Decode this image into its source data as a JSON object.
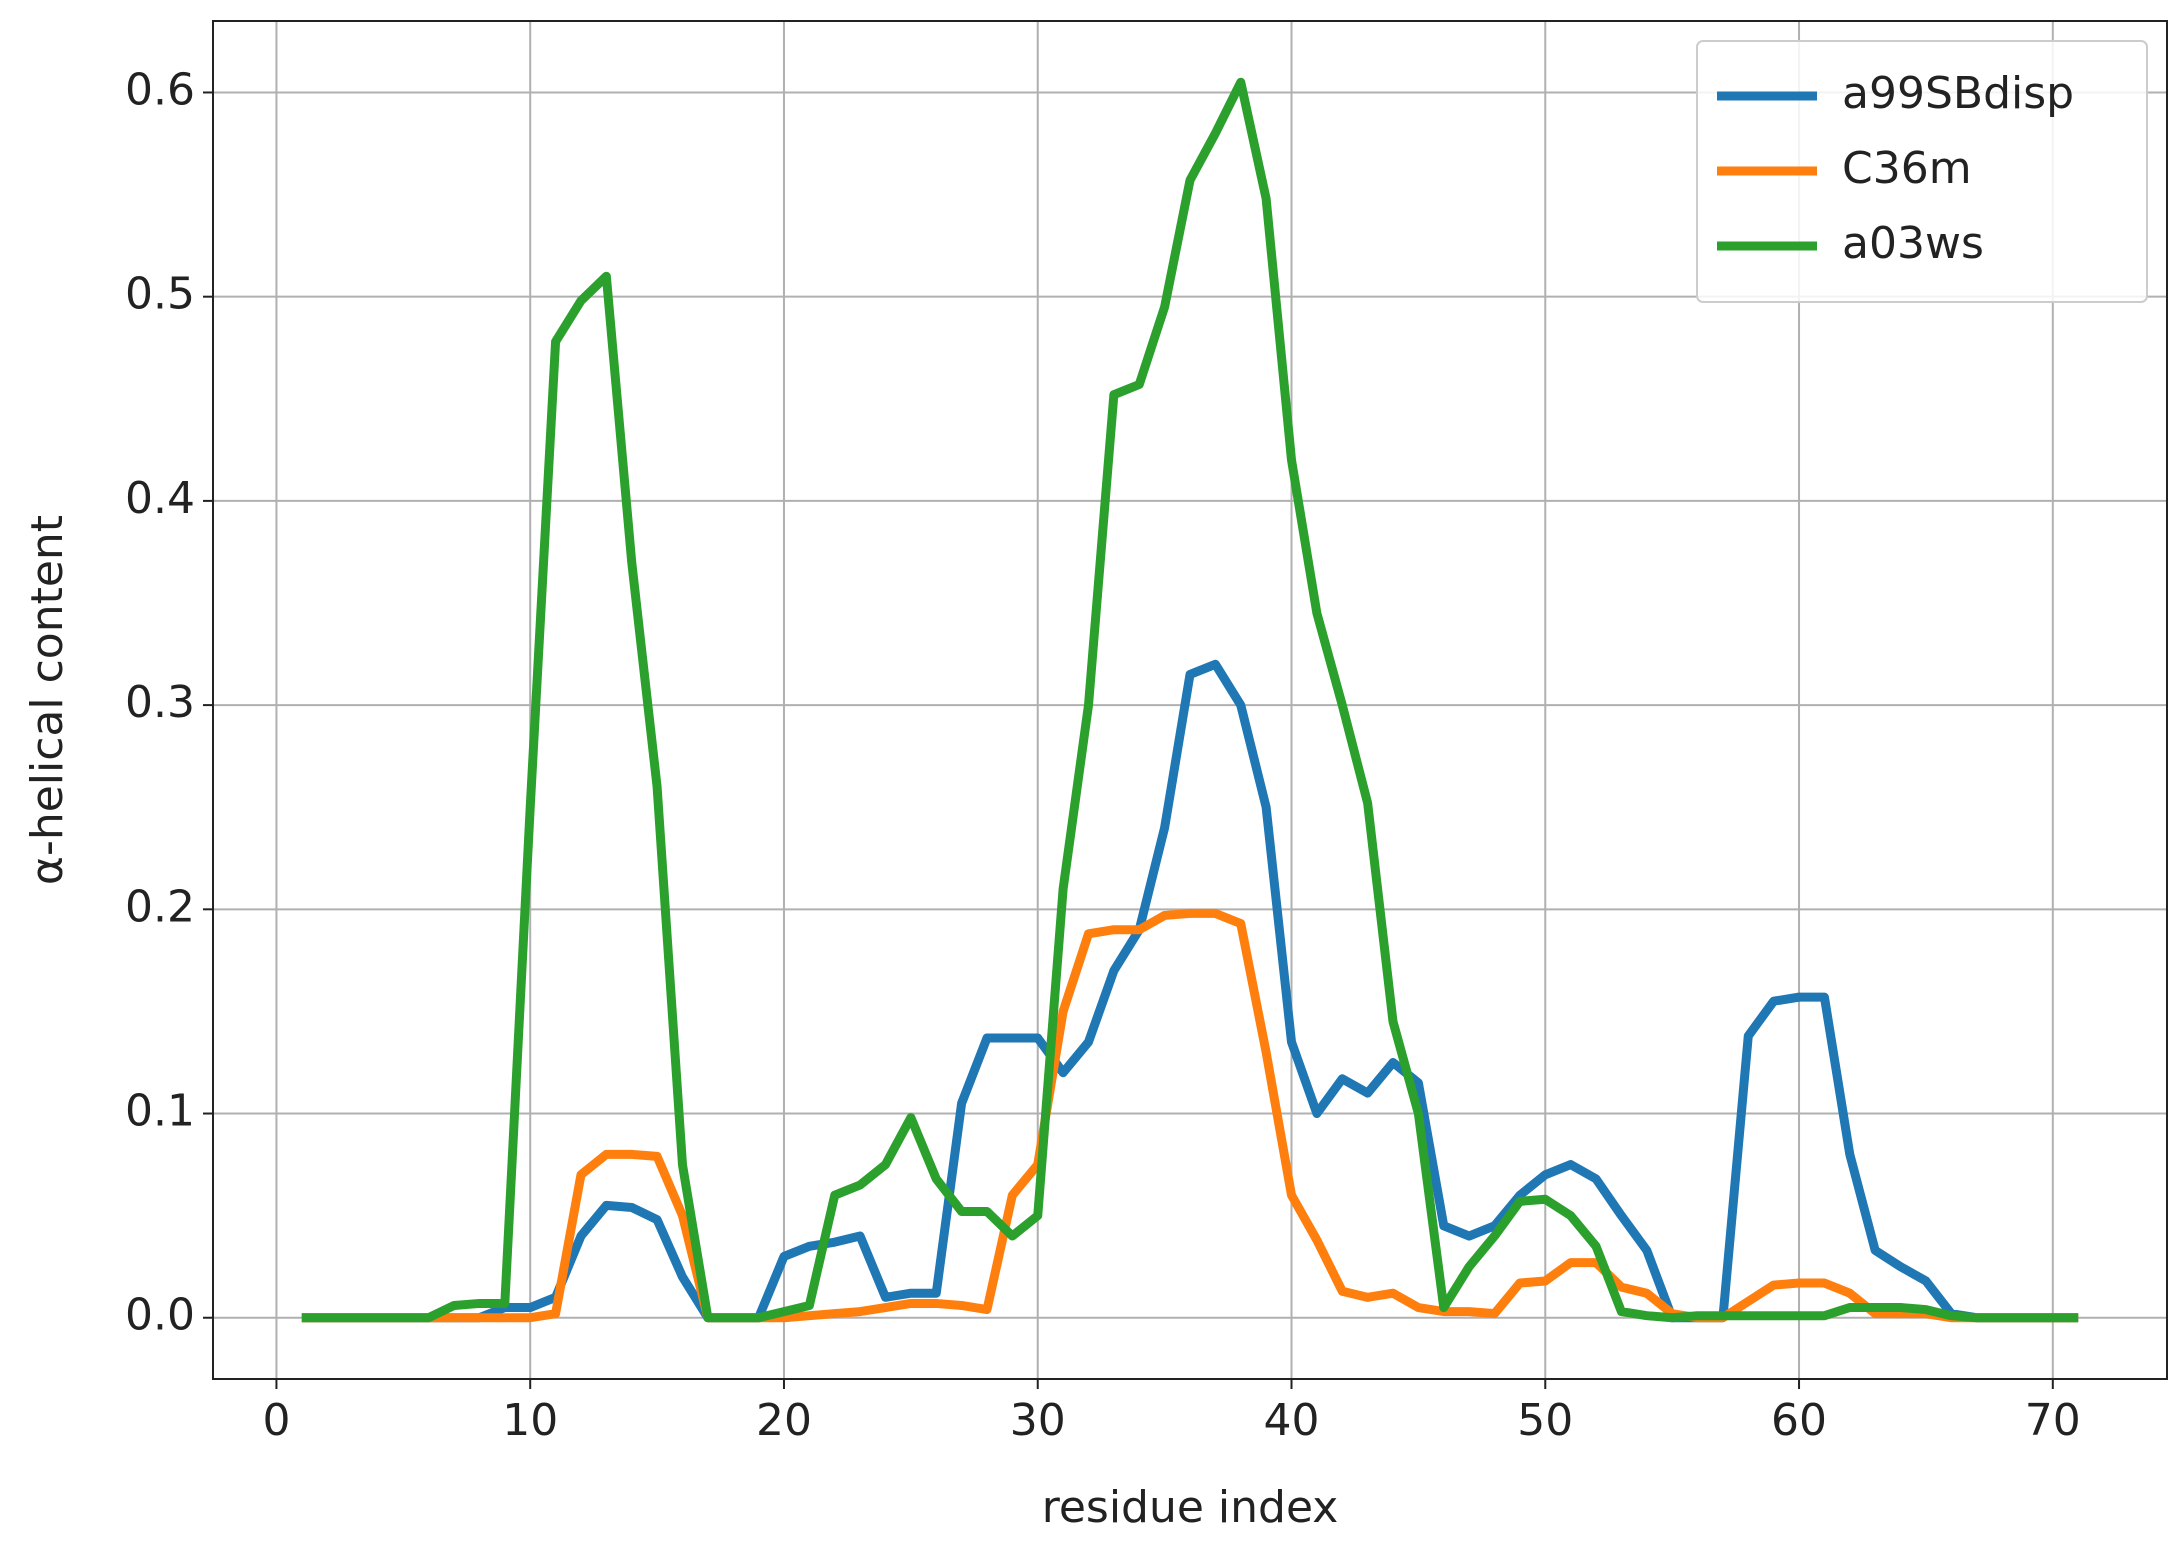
{
  "chart_data": {
    "type": "line",
    "xlabel": "residue index",
    "ylabel": "α-helical content",
    "x": [
      1,
      2,
      3,
      4,
      5,
      6,
      7,
      8,
      9,
      10,
      11,
      12,
      13,
      14,
      15,
      16,
      17,
      18,
      19,
      20,
      21,
      22,
      23,
      24,
      25,
      26,
      27,
      28,
      29,
      30,
      31,
      32,
      33,
      34,
      35,
      36,
      37,
      38,
      39,
      40,
      41,
      42,
      43,
      44,
      45,
      46,
      47,
      48,
      49,
      50,
      51,
      52,
      53,
      54,
      55,
      56,
      57,
      58,
      59,
      60,
      61,
      62,
      63,
      64,
      65,
      66,
      67,
      68,
      69,
      70,
      71
    ],
    "series": [
      {
        "name": "a99SBdisp",
        "color": "#1f77b4",
        "values": [
          0,
          0,
          0,
          0,
          0,
          0,
          0,
          0,
          0.005,
          0.005,
          0.01,
          0.04,
          0.055,
          0.054,
          0.048,
          0.02,
          0,
          0,
          0,
          0.03,
          0.035,
          0.037,
          0.04,
          0.01,
          0.012,
          0.012,
          0.105,
          0.137,
          0.137,
          0.137,
          0.12,
          0.135,
          0.17,
          0.19,
          0.24,
          0.315,
          0.32,
          0.3,
          0.25,
          0.135,
          0.1,
          0.117,
          0.11,
          0.125,
          0.115,
          0.045,
          0.04,
          0.045,
          0.06,
          0.07,
          0.075,
          0.068,
          0.05,
          0.033,
          0,
          0,
          0,
          0.138,
          0.155,
          0.157,
          0.157,
          0.08,
          0.033,
          0.025,
          0.018,
          0.002,
          0,
          0,
          0,
          0,
          0
        ]
      },
      {
        "name": "C36m",
        "color": "#ff7f0e",
        "values": [
          0,
          0,
          0,
          0,
          0,
          0,
          0,
          0,
          0,
          0,
          0.002,
          0.07,
          0.08,
          0.08,
          0.079,
          0.05,
          0,
          0,
          0,
          0,
          0.001,
          0.002,
          0.003,
          0.005,
          0.007,
          0.007,
          0.006,
          0.004,
          0.06,
          0.075,
          0.15,
          0.188,
          0.19,
          0.19,
          0.197,
          0.198,
          0.198,
          0.193,
          0.13,
          0.06,
          0.038,
          0.013,
          0.01,
          0.012,
          0.005,
          0.003,
          0.003,
          0.002,
          0.017,
          0.018,
          0.027,
          0.027,
          0.015,
          0.012,
          0.002,
          0,
          0,
          0.008,
          0.016,
          0.017,
          0.017,
          0.012,
          0.002,
          0.002,
          0.002,
          0,
          0,
          0,
          0,
          0,
          0
        ]
      },
      {
        "name": "a03ws",
        "color": "#2ca02c",
        "values": [
          0,
          0,
          0,
          0,
          0,
          0,
          0.006,
          0.007,
          0.007,
          0.25,
          0.478,
          0.498,
          0.51,
          0.37,
          0.26,
          0.075,
          0,
          0,
          0,
          0.003,
          0.006,
          0.06,
          0.065,
          0.075,
          0.098,
          0.068,
          0.052,
          0.052,
          0.04,
          0.05,
          0.21,
          0.3,
          0.452,
          0.457,
          0.495,
          0.557,
          0.58,
          0.605,
          0.548,
          0.42,
          0.345,
          0.3,
          0.252,
          0.145,
          0.1,
          0.005,
          0.025,
          0.04,
          0.057,
          0.058,
          0.05,
          0.035,
          0.003,
          0.001,
          0,
          0.001,
          0.001,
          0.001,
          0.001,
          0.001,
          0.001,
          0.005,
          0.005,
          0.005,
          0.004,
          0.001,
          0,
          0,
          0,
          0,
          0
        ]
      }
    ],
    "xlim": [
      -2.5,
      74.5
    ],
    "xticks": [
      0,
      10,
      20,
      30,
      40,
      50,
      60,
      70
    ],
    "ylim": [
      -0.03,
      0.635
    ],
    "yticks": [
      {
        "value": 0,
        "label": "0.0"
      },
      0.1,
      0.2,
      0.3,
      0.4,
      0.5,
      0.6
    ],
    "grid": true,
    "legend": "upper right"
  }
}
